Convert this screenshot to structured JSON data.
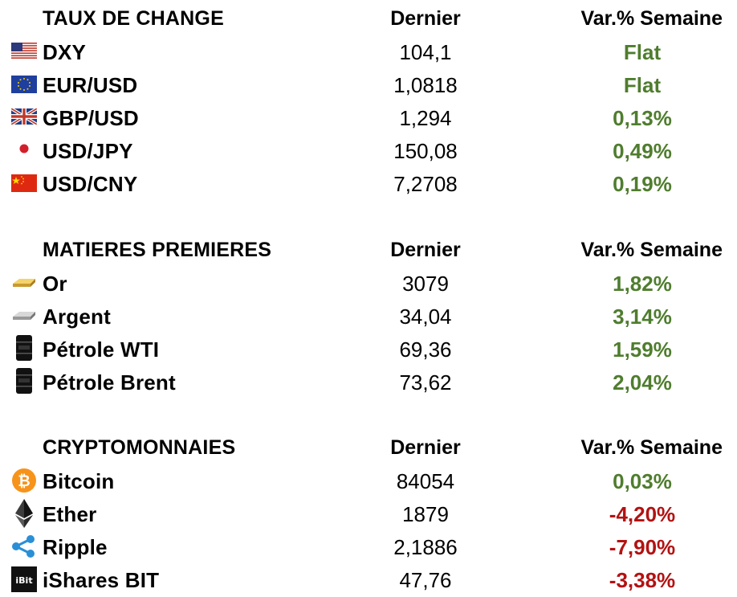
{
  "sections": [
    {
      "header": {
        "title": "TAUX DE CHANGE",
        "col_last": "Dernier",
        "col_var": "Var.% Semaine"
      },
      "rows": [
        {
          "icon": "us-flag-icon",
          "name": "DXY",
          "last": "104,1",
          "var": "Flat"
        },
        {
          "icon": "eu-flag-icon",
          "name": "EUR/USD",
          "last": "1,0818",
          "var": "Flat"
        },
        {
          "icon": "uk-flag-icon",
          "name": "GBP/USD",
          "last": "1,294",
          "var": "0,13%"
        },
        {
          "icon": "japan-flag-icon",
          "name": "USD/JPY",
          "last": "150,08",
          "var": "0,49%"
        },
        {
          "icon": "china-flag-icon",
          "name": "USD/CNY",
          "last": "7,2708",
          "var": "0,19%"
        }
      ]
    },
    {
      "header": {
        "title": "MATIERES PREMIERES",
        "col_last": "Dernier",
        "col_var": "Var.% Semaine"
      },
      "rows": [
        {
          "icon": "gold-bar-icon",
          "name": "Or",
          "last": "3079",
          "var": "1,82%"
        },
        {
          "icon": "silver-bar-icon",
          "name": "Argent",
          "last": "34,04",
          "var": "3,14%"
        },
        {
          "icon": "oil-barrel-icon",
          "name": "Pétrole WTI",
          "last": "69,36",
          "var": "1,59%"
        },
        {
          "icon": "oil-barrel-icon",
          "name": "Pétrole Brent",
          "last": "73,62",
          "var": "2,04%"
        }
      ]
    },
    {
      "header": {
        "title": "CRYPTOMONNAIES",
        "col_last": "Dernier",
        "col_var": "Var.% Semaine"
      },
      "rows": [
        {
          "icon": "bitcoin-icon",
          "name": "Bitcoin",
          "last": "84054",
          "var": "0,03%"
        },
        {
          "icon": "ethereum-icon",
          "name": "Ether",
          "last": "1879",
          "var": "-4,20%"
        },
        {
          "icon": "ripple-icon",
          "name": "Ripple",
          "last": "2,1886",
          "var": "-7,90%"
        },
        {
          "icon": "ishares-bit-icon",
          "name": "iShares BIT",
          "last": "47,76",
          "var": "-3,38%"
        }
      ]
    }
  ],
  "colors": {
    "positive": "#4f7d2e",
    "negative": "#b31212"
  }
}
